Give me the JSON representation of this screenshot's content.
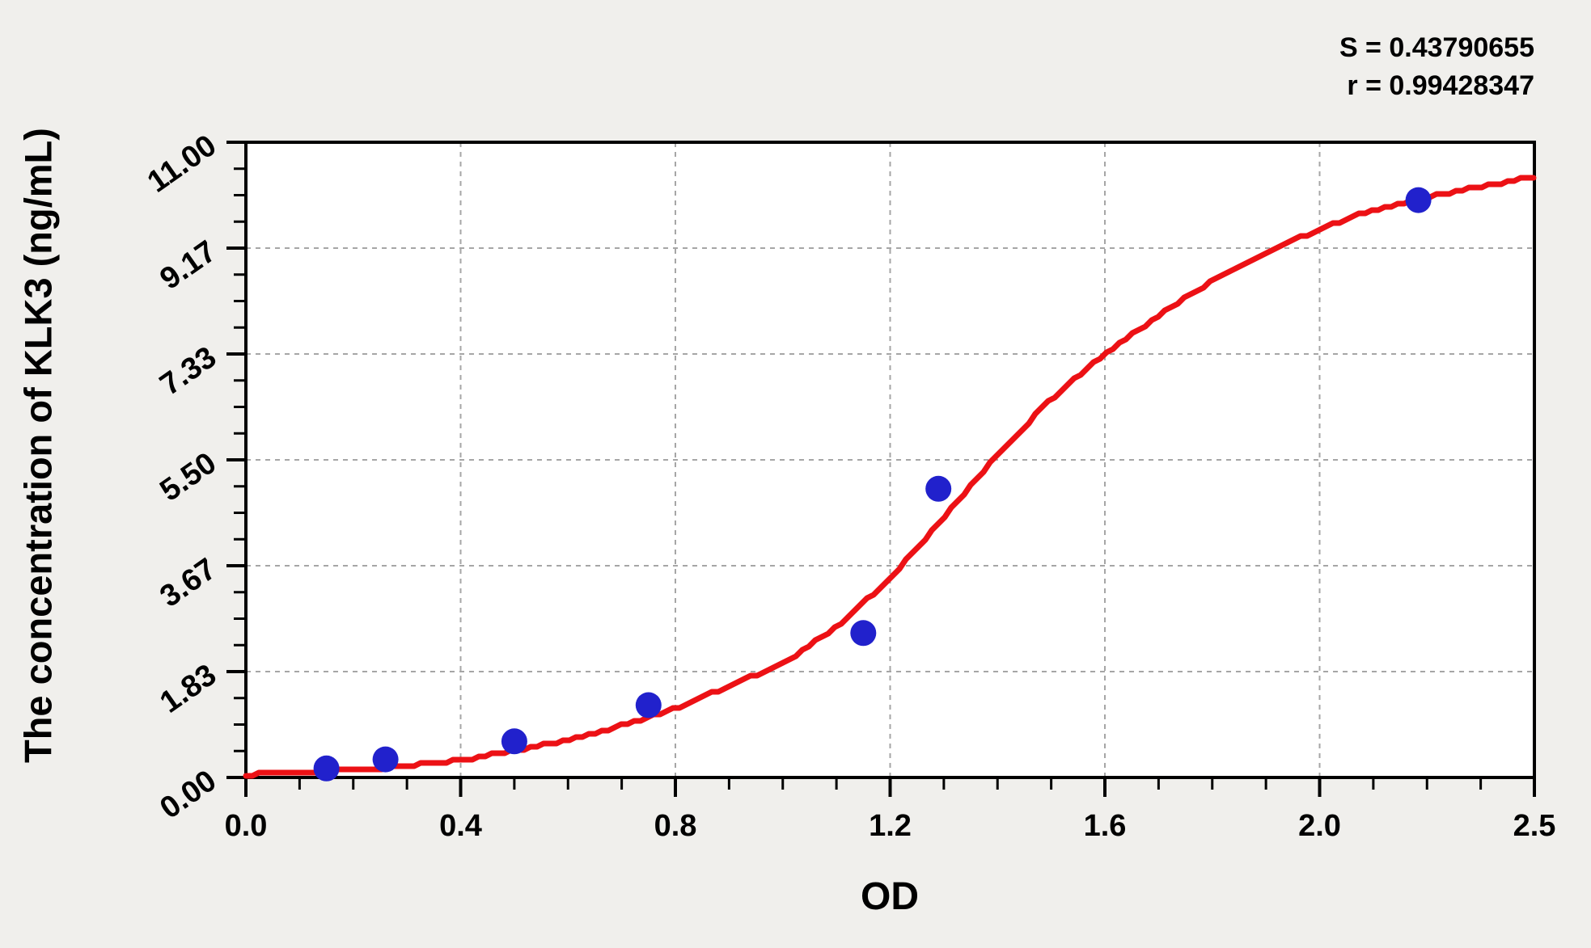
{
  "chart_data": {
    "type": "scatter",
    "title": "",
    "xlabel": "OD",
    "ylabel": "The concentration of KLK3 (ng/mL)",
    "xlim": [
      0,
      2.5
    ],
    "ylim": [
      0,
      11
    ],
    "x_major_ticks": [
      0,
      0.4,
      0.8,
      1.2,
      1.6,
      2.0,
      2.5
    ],
    "x_major_labels": [
      "0.0",
      "0.4",
      "0.8",
      "1.2",
      "1.6",
      "2.0",
      "2.5"
    ],
    "y_major_ticks": [
      0,
      1.83,
      3.67,
      5.5,
      7.33,
      9.17,
      11
    ],
    "y_major_labels": [
      "0.00",
      "1.83",
      "3.67",
      "5.50",
      "7.33",
      "9.17",
      "11.00"
    ],
    "minor_divisions_per_major": 4,
    "grid": {
      "style": "dashed",
      "at": "major-ticks",
      "color": "#a6a6a6"
    },
    "legend": null,
    "annotations": {
      "s_line": "S = 0.43790655",
      "r_line": "r = 0.99428347"
    },
    "series": [
      {
        "name": "standard-points",
        "type": "scatter",
        "marker": "circle",
        "color": "#2121cc",
        "points": [
          {
            "od": 0.15,
            "conc": 0.156
          },
          {
            "od": 0.26,
            "conc": 0.3125
          },
          {
            "od": 0.5,
            "conc": 0.625
          },
          {
            "od": 0.75,
            "conc": 1.25
          },
          {
            "od": 1.15,
            "conc": 2.5
          },
          {
            "od": 1.29,
            "conc": 5.0
          },
          {
            "od": 2.23,
            "conc": 10.0
          }
        ]
      },
      {
        "name": "4pl-fit-curve",
        "type": "line",
        "color": "#ec1115",
        "samples": [
          [
            0.0,
            0.05
          ],
          [
            0.1,
            0.08
          ],
          [
            0.2,
            0.13
          ],
          [
            0.3,
            0.2
          ],
          [
            0.4,
            0.3
          ],
          [
            0.5,
            0.46
          ],
          [
            0.6,
            0.65
          ],
          [
            0.7,
            0.9
          ],
          [
            0.8,
            1.2
          ],
          [
            0.9,
            1.58
          ],
          [
            1.0,
            1.97
          ],
          [
            1.1,
            2.6
          ],
          [
            1.2,
            3.45
          ],
          [
            1.3,
            4.5
          ],
          [
            1.4,
            5.6
          ],
          [
            1.5,
            6.55
          ],
          [
            1.6,
            7.33
          ],
          [
            1.7,
            8.0
          ],
          [
            1.8,
            8.6
          ],
          [
            1.9,
            9.1
          ],
          [
            2.0,
            9.5
          ],
          [
            2.1,
            9.78
          ],
          [
            2.2,
            9.97
          ],
          [
            2.3,
            10.13
          ],
          [
            2.4,
            10.27
          ],
          [
            2.5,
            10.4
          ]
        ]
      }
    ]
  },
  "colors": {
    "background": "#f0efec",
    "plot_background": "#ffffff",
    "axis": "#000000",
    "grid": "#a6a6a6",
    "curve": "#ec1115",
    "point": "#2121cc",
    "text": "#000000"
  }
}
